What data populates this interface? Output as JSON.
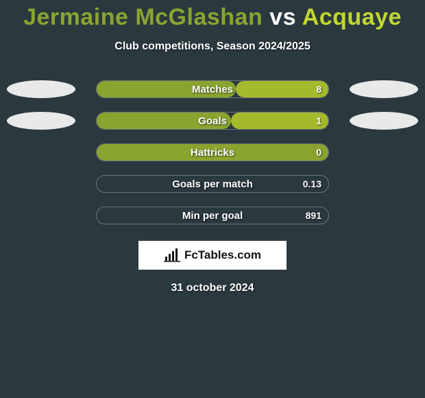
{
  "background_color": "#2b393f",
  "title": {
    "player1": "Jermaine McGlashan",
    "vs": "vs",
    "player2": "Acquaye",
    "player1_color": "#8aa430",
    "player2_color": "#c1d630",
    "vs_color": "#ffffff",
    "fontsize": 34
  },
  "subtitle": "Club competitions, Season 2024/2025",
  "colors": {
    "left_fill": "#8aa430",
    "right_fill": "#a5b92c",
    "border": "rgba(255,255,255,0.3)",
    "ellipse_left": "#e9e9e9",
    "ellipse_right": "#e9e9e9",
    "text": "#ffffff",
    "text_shadow": "rgba(0,0,0,0.7)"
  },
  "bar": {
    "container_width": 340,
    "container_height": 26,
    "border_radius": 13,
    "label_fontsize": 15,
    "value_fontsize": 14,
    "ellipse_width": 100,
    "ellipse_height": 26
  },
  "stats": [
    {
      "label": "Matches",
      "left_value": "",
      "right_value": "8",
      "left_pct": 60,
      "right_pct": 40,
      "show_left_ellipse": true,
      "show_right_ellipse": true
    },
    {
      "label": "Goals",
      "left_value": "",
      "right_value": "1",
      "left_pct": 58,
      "right_pct": 42,
      "show_left_ellipse": true,
      "show_right_ellipse": true
    },
    {
      "label": "Hattricks",
      "left_value": "",
      "right_value": "0",
      "left_pct": 100,
      "right_pct": 0,
      "show_left_ellipse": false,
      "show_right_ellipse": false
    },
    {
      "label": "Goals per match",
      "left_value": "",
      "right_value": "0.13",
      "left_pct": 0,
      "right_pct": 0,
      "show_left_ellipse": false,
      "show_right_ellipse": false
    },
    {
      "label": "Min per goal",
      "left_value": "",
      "right_value": "891",
      "left_pct": 0,
      "right_pct": 0,
      "show_left_ellipse": false,
      "show_right_ellipse": false
    }
  ],
  "brand": {
    "text": "FcTables.com"
  },
  "date": "31 october 2024"
}
